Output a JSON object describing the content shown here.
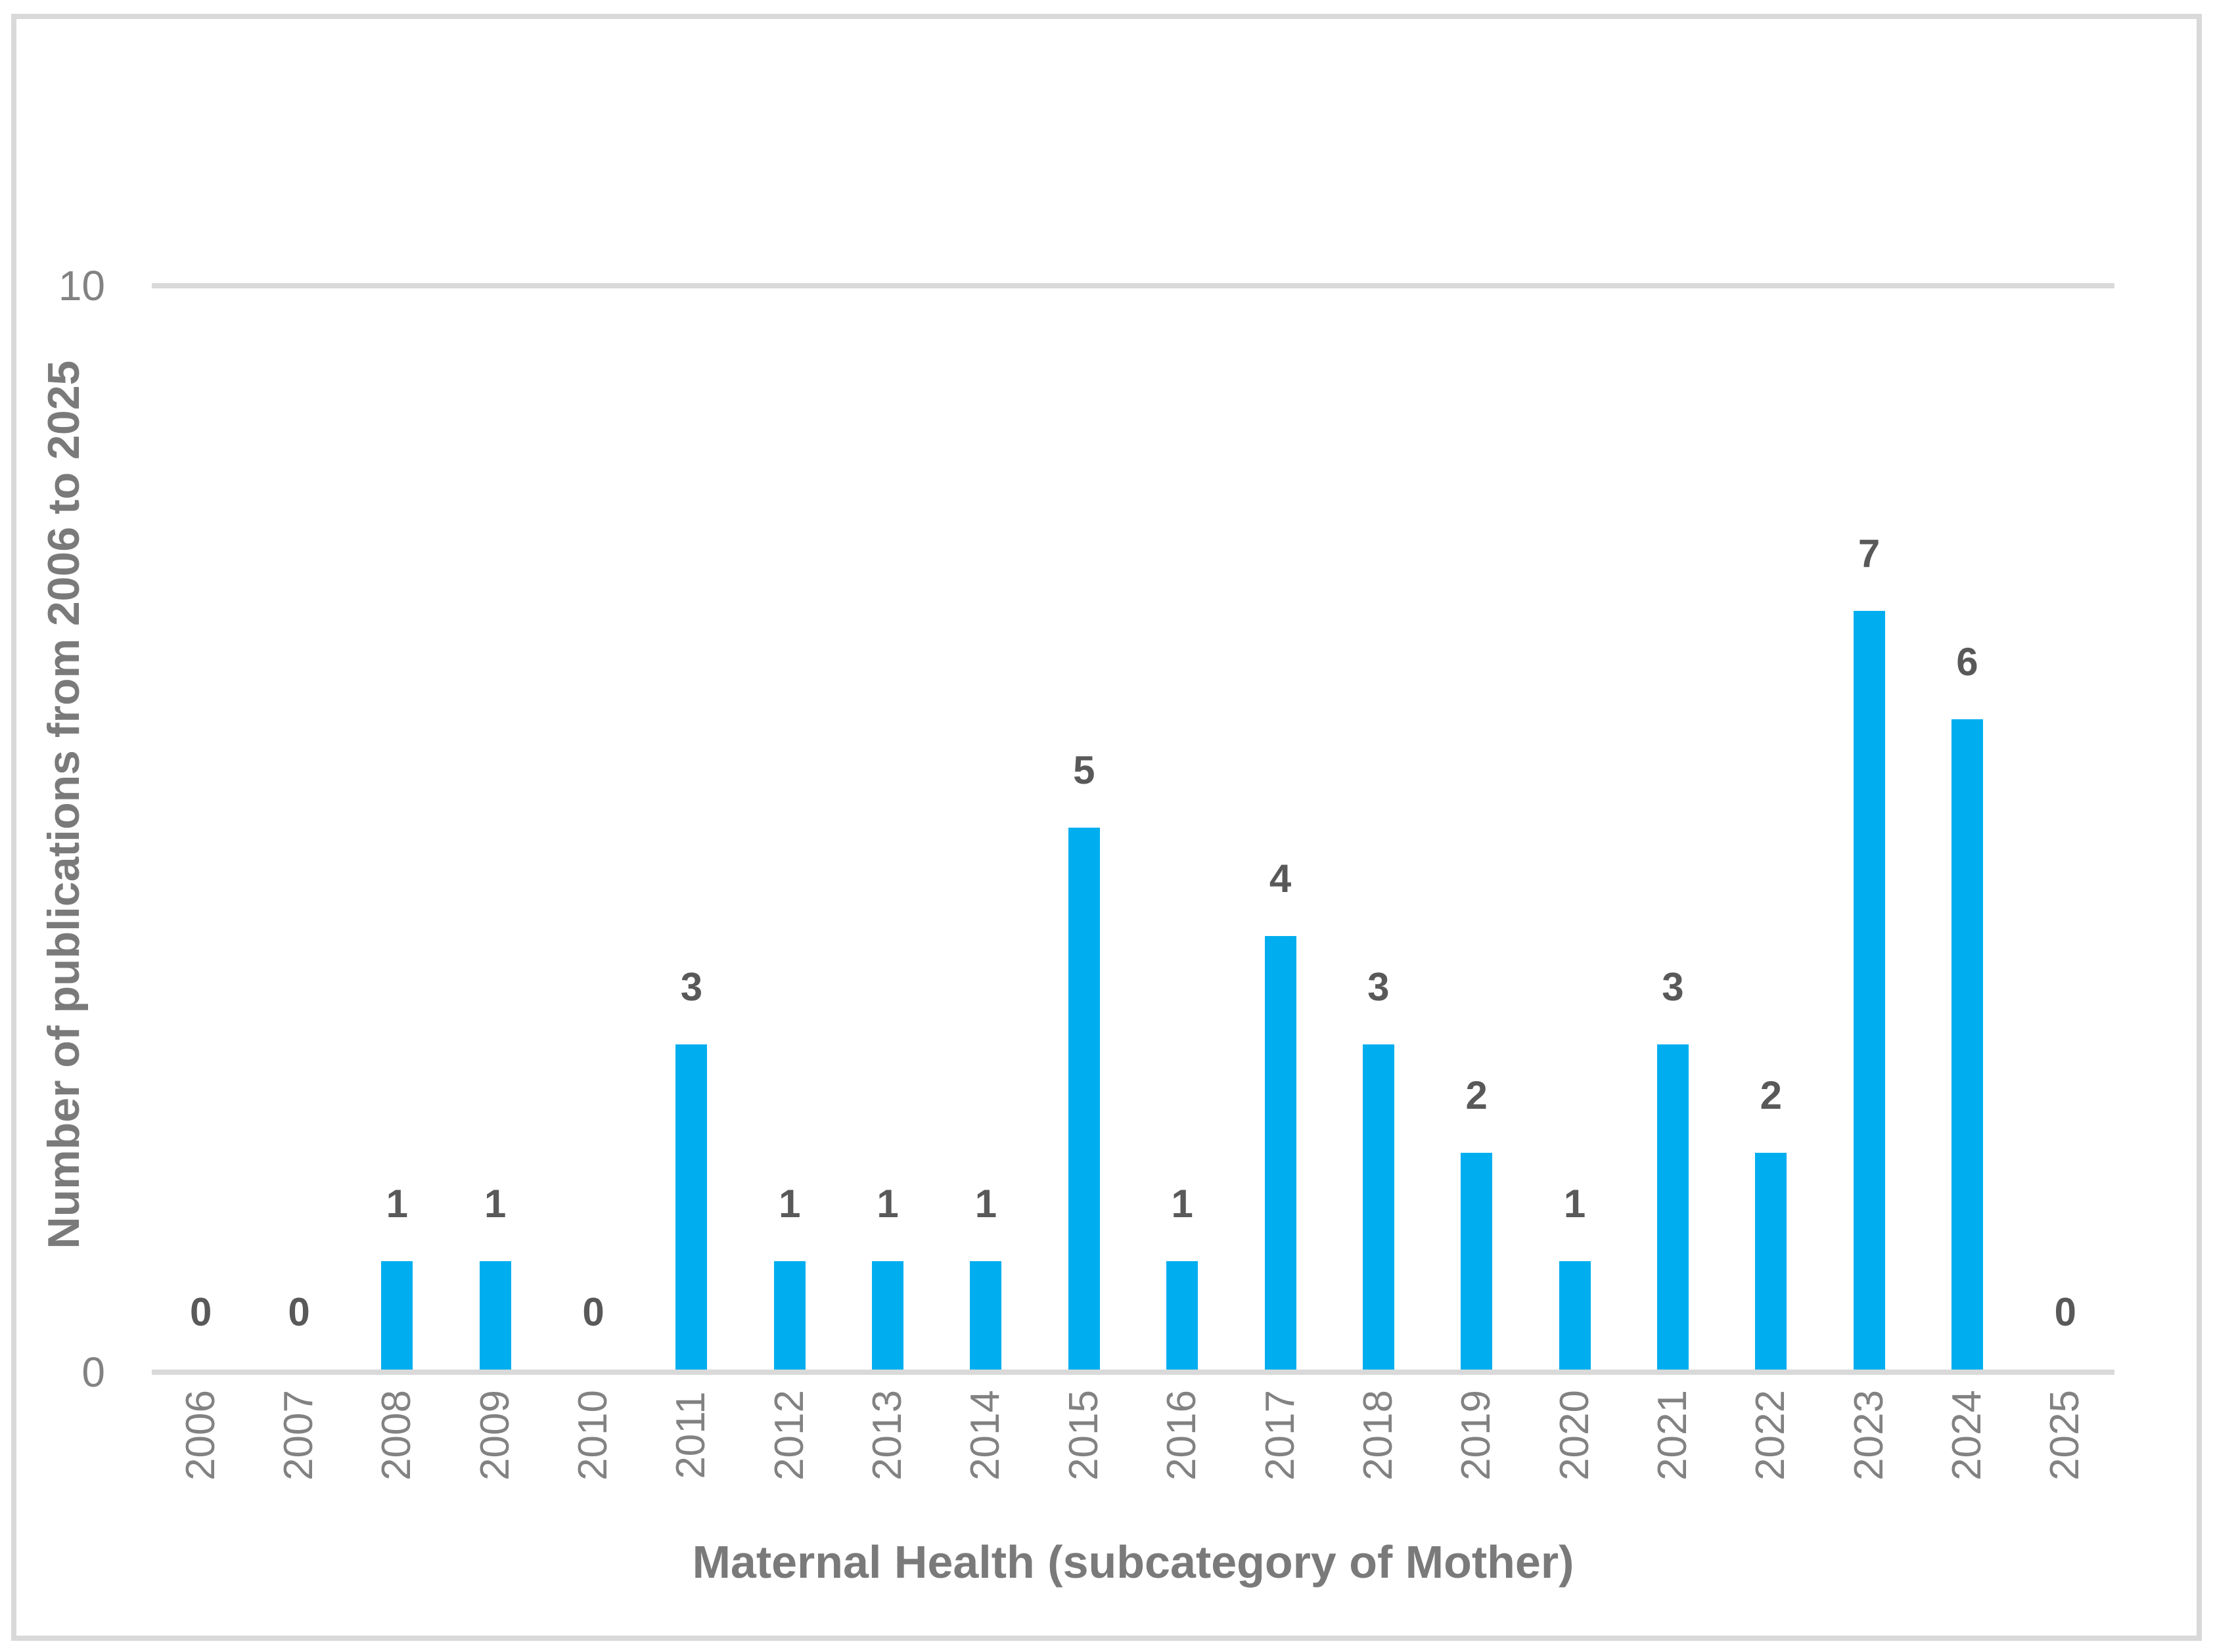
{
  "chart_data": {
    "type": "bar",
    "title": "",
    "categories": [
      "2006",
      "2007",
      "2008",
      "2009",
      "2010",
      "2011",
      "2012",
      "2013",
      "2014",
      "2015",
      "2016",
      "2017",
      "2018",
      "2019",
      "2020",
      "2021",
      "2022",
      "2023",
      "2024",
      "2025"
    ],
    "values": [
      0,
      0,
      1,
      1,
      0,
      3,
      1,
      1,
      1,
      5,
      1,
      4,
      3,
      2,
      1,
      3,
      2,
      7,
      6,
      0
    ],
    "xlabel": "Maternal Health (subcategory of Mother)",
    "ylabel": "Number of publications from 2006 to 2025",
    "ylim": [
      0,
      10
    ],
    "yticks": [
      "10",
      "0"
    ],
    "grid": "single horizontal gridline at y=10 only",
    "legend": "none",
    "data_labels": "value shown above each bar",
    "colors": {
      "bar": "#00AEEF",
      "data_label": "#595959",
      "tick_label": "#828282",
      "axis_title": "#7A7A7A",
      "axis_and_frame_lines": "#D9D9D9",
      "background": "#FFFFFF"
    }
  }
}
